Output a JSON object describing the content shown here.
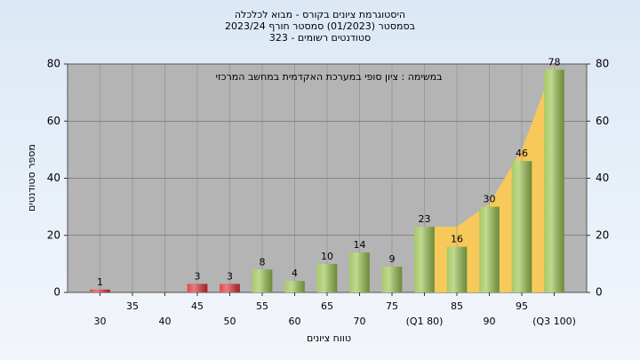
{
  "chart_data": {
    "type": "bar",
    "title": [
      "היסטוגרמת ציונים בקורס - מבוא לכלכלה",
      "בסמסטר  (01/2023)  סמסטר חורף  2023/24",
      "סטודנטים רשומים - 323"
    ],
    "annotation": "במשימה : ציון סופי במערכת האקדמית במחשב המרכזי",
    "xlabel": "טווח ציונים",
    "ylabel": "מספר סטודנטים",
    "categories": [
      "30",
      "35",
      "40",
      "45",
      "50",
      "55",
      "60",
      "65",
      "70",
      "75",
      "(Q1 80)",
      "85",
      "90",
      "95",
      "(Q3 100)"
    ],
    "values": [
      1,
      null,
      null,
      3,
      3,
      8,
      4,
      10,
      14,
      9,
      23,
      16,
      30,
      46,
      78
    ],
    "colors": [
      "#d9373a",
      null,
      null,
      "#d9373a",
      "#d9373a",
      "#9cc554",
      "#9cc554",
      "#9cc554",
      "#9cc554",
      "#9cc554",
      "#9cc554",
      "#9cc554",
      "#9cc554",
      "#9cc554",
      "#9cc554"
    ],
    "area": {
      "color": "#f7c95a",
      "values": [
        null,
        null,
        null,
        null,
        null,
        null,
        null,
        null,
        null,
        null,
        23,
        23,
        31,
        50,
        80
      ]
    },
    "ylim": [
      0,
      80
    ],
    "yticks": [
      0,
      20,
      40,
      60,
      80
    ],
    "y2lim": [
      0,
      80
    ],
    "y2ticks": [
      0,
      20,
      40,
      60,
      80
    ],
    "grid": true
  }
}
